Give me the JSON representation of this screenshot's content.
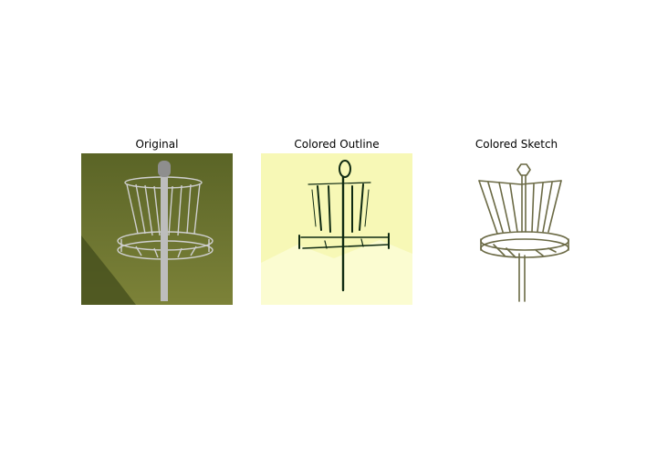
{
  "panels": [
    {
      "title": "Original"
    },
    {
      "title": "Colored Outline"
    },
    {
      "title": "Colored Sketch"
    }
  ],
  "colors": {
    "grass_dark": "#4f5a1f",
    "grass_light": "#8a8f3a",
    "metal": "#c9c9c9",
    "outline_bg": "#f7f8b4",
    "outline_ink": "#0f2a12",
    "sketch_ink": "#6b6a45"
  }
}
